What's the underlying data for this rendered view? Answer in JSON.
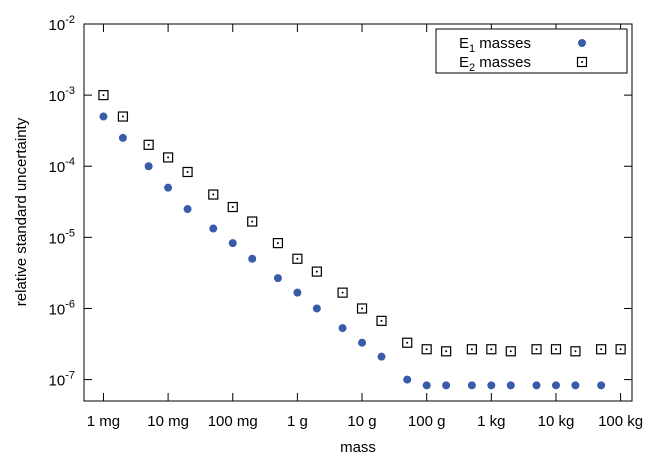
{
  "chart_data": {
    "type": "scatter",
    "title": "",
    "xlabel": "mass",
    "ylabel": "relative standard uncertainty",
    "x_scale": "log",
    "y_scale": "log",
    "xlim": [
      "0.5 mg",
      "150 kg"
    ],
    "ylim": [
      5e-08,
      0.01
    ],
    "grid": false,
    "legend_position": "top-right",
    "x_ticks": [
      "1 mg",
      "10 mg",
      "100 mg",
      "1 g",
      "10 g",
      "100 g",
      "1 kg",
      "10 kg",
      "100 kg"
    ],
    "y_ticks": [
      {
        "mantissa": "10",
        "exp": "-7",
        "value": 1e-07
      },
      {
        "mantissa": "10",
        "exp": "-6",
        "value": 1e-06
      },
      {
        "mantissa": "10",
        "exp": "-5",
        "value": 1e-05
      },
      {
        "mantissa": "10",
        "exp": "-4",
        "value": 0.0001
      },
      {
        "mantissa": "10",
        "exp": "-3",
        "value": 0.001
      },
      {
        "mantissa": "10",
        "exp": "-2",
        "value": 0.01
      }
    ],
    "series": [
      {
        "name": "E1 masses",
        "label_main": "E",
        "label_sub": "1",
        "label_rest": " masses",
        "marker": "filled-circle",
        "color": "#3a5ba9",
        "x": [
          "1 mg",
          "2 mg",
          "5 mg",
          "10 mg",
          "20 mg",
          "50 mg",
          "100 mg",
          "200 mg",
          "500 mg",
          "1 g",
          "2 g",
          "5 g",
          "10 g",
          "20 g",
          "50 g",
          "100 g",
          "200 g",
          "500 g",
          "1 kg",
          "2 kg",
          "5 kg",
          "10 kg",
          "20 kg",
          "50 kg"
        ],
        "y": [
          0.0005,
          0.00025,
          0.0001,
          5e-05,
          2.5e-05,
          1.33e-05,
          8.3e-06,
          5e-06,
          2.67e-06,
          1.67e-06,
          1e-06,
          5.3e-07,
          3.3e-07,
          2.1e-07,
          1e-07,
          8.3e-08,
          8.3e-08,
          8.3e-08,
          8.3e-08,
          8.3e-08,
          8.3e-08,
          8.3e-08,
          8.3e-08,
          8.3e-08
        ]
      },
      {
        "name": "E2 masses",
        "label_main": "E",
        "label_sub": "2",
        "label_rest": " masses",
        "marker": "open-square-dot",
        "color": "#000000",
        "x": [
          "1 mg",
          "2 mg",
          "5 mg",
          "10 mg",
          "20 mg",
          "50 mg",
          "100 mg",
          "200 mg",
          "500 mg",
          "1 g",
          "2 g",
          "5 g",
          "10 g",
          "20 g",
          "50 g",
          "100 g",
          "200 g",
          "500 g",
          "1 kg",
          "2 kg",
          "5 kg",
          "10 kg",
          "20 kg",
          "50 kg",
          "100 kg"
        ],
        "y": [
          0.001,
          0.0005,
          0.0002,
          0.000133,
          8.3e-05,
          4e-05,
          2.67e-05,
          1.67e-05,
          8.3e-06,
          5e-06,
          3.3e-06,
          1.67e-06,
          1e-06,
          6.7e-07,
          3.3e-07,
          2.67e-07,
          2.5e-07,
          2.67e-07,
          2.67e-07,
          2.5e-07,
          2.67e-07,
          2.67e-07,
          2.5e-07,
          2.67e-07,
          2.67e-07
        ]
      }
    ]
  }
}
